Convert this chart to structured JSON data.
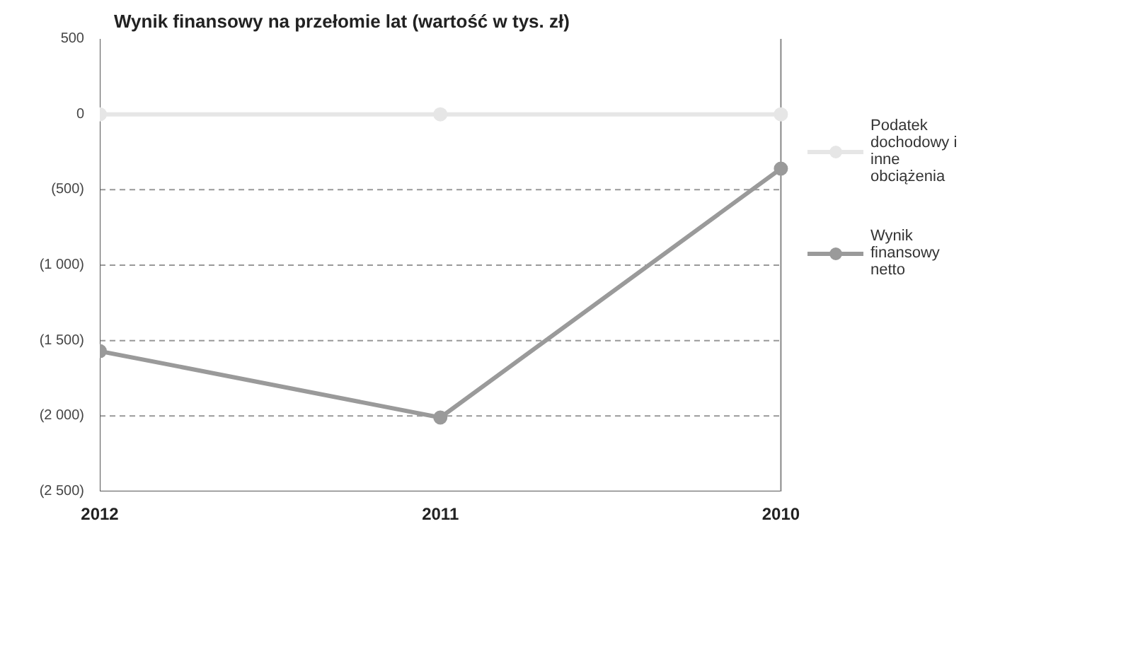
{
  "chart_data": {
    "type": "line",
    "title": "Wynik finansowy na przełomie lat (wartość w tys. zł)",
    "categories": [
      "2012",
      "2011",
      "2010"
    ],
    "series": [
      {
        "name": "Podatek dochodowy i inne obciążenia",
        "color": "#e6e6e6",
        "values": [
          0,
          0,
          0
        ]
      },
      {
        "name": "Wynik finansowy netto",
        "color": "#9a9a9a",
        "values": [
          -1570,
          -2010,
          -360
        ]
      }
    ],
    "ylim": [
      -2500,
      500
    ],
    "yticks": [
      500,
      0,
      {
        "value": -500,
        "label": "(500)"
      },
      {
        "value": -1000,
        "label": "(1 000)"
      },
      {
        "value": -1500,
        "label": "(1 500)"
      },
      {
        "value": -2000,
        "label": "(2 000)"
      },
      {
        "value": -2500,
        "label": "(2 500)"
      }
    ],
    "grid": "y",
    "legend": "right",
    "marker": "circle",
    "line_style": "solid"
  }
}
